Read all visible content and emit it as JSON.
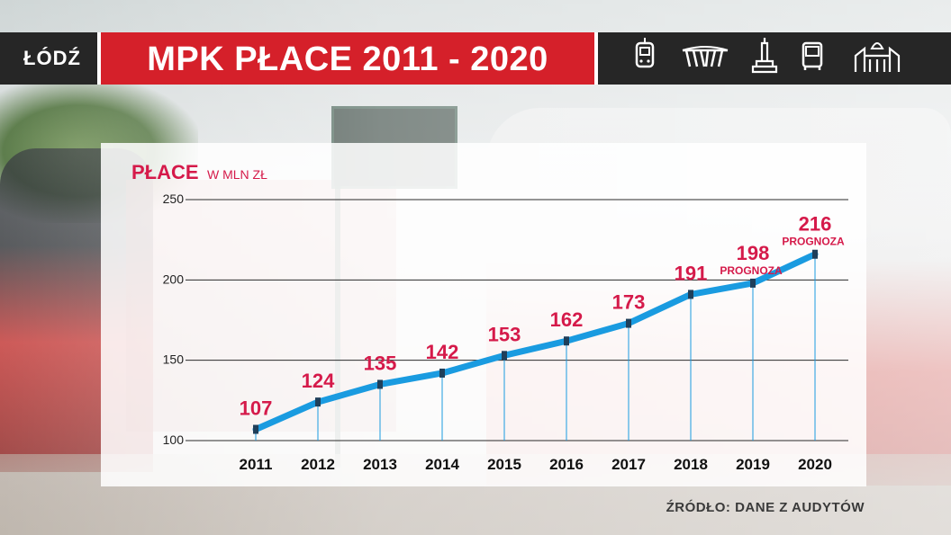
{
  "header": {
    "logo_text": "ŁÓDŹ",
    "title": "MPK PŁACE 2011 - 2020",
    "icons": [
      "tram-icon",
      "factory-icon",
      "monument-icon",
      "bus-icon",
      "building-icon"
    ]
  },
  "colors": {
    "header_bg": "#262626",
    "title_bg": "#d5202a",
    "line": "#1a9be0",
    "label": "#d51a4a",
    "grid": "#2a2a2a"
  },
  "chart_data": {
    "type": "line",
    "title": "PŁACE",
    "ylabel": "W MLN ZŁ",
    "xlabel": "",
    "categories": [
      "2011",
      "2012",
      "2013",
      "2014",
      "2015",
      "2016",
      "2017",
      "2018",
      "2019",
      "2020"
    ],
    "values": [
      107,
      124,
      135,
      142,
      153,
      162,
      173,
      191,
      198,
      216
    ],
    "yticks": [
      100,
      150,
      200,
      250
    ],
    "ylim": [
      100,
      250
    ],
    "grid": true,
    "annotations": [
      {
        "category": "2019",
        "text": "PROGNOZA"
      },
      {
        "category": "2020",
        "text": "PROGNOZA"
      }
    ]
  },
  "footer": {
    "source": "ŹRÓDŁO: DANE Z AUDYTÓW"
  }
}
